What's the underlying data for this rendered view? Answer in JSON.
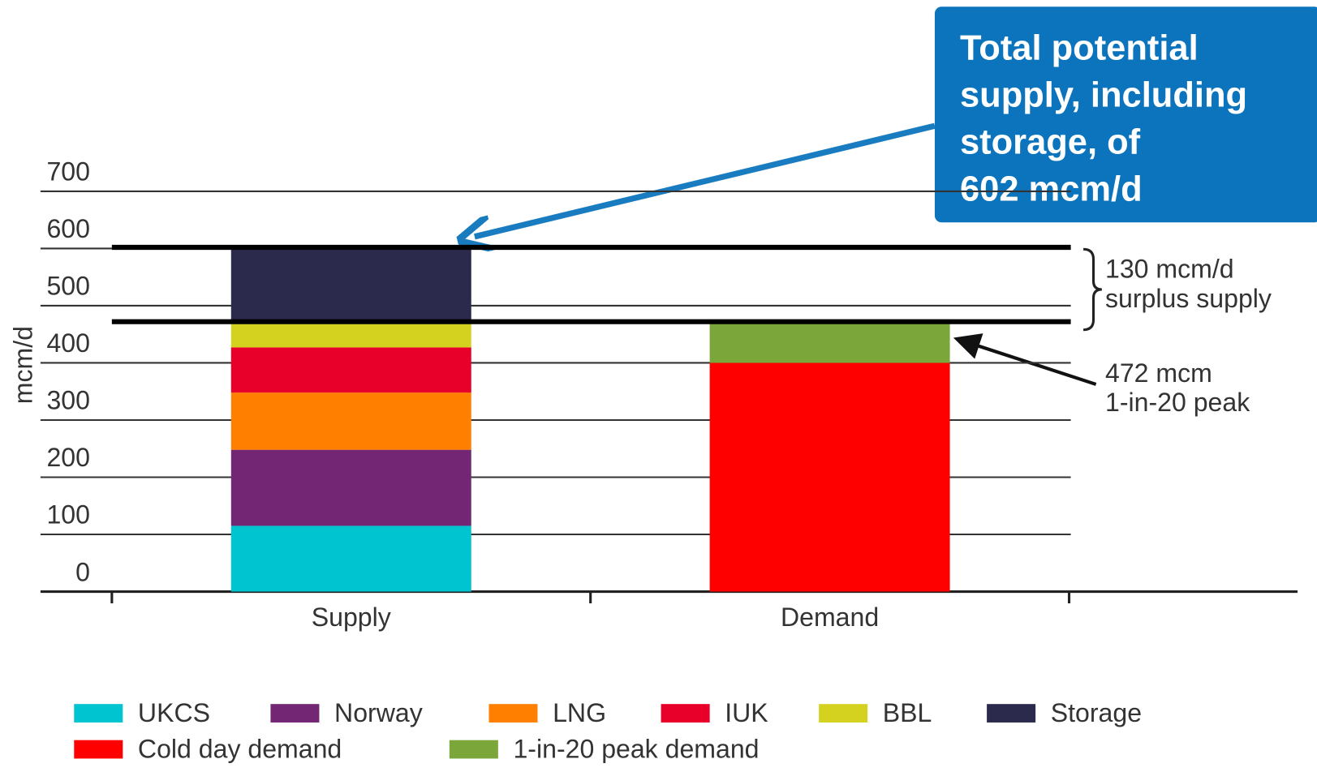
{
  "chart_data": {
    "type": "bar",
    "stacked": true,
    "y_label": "mcm/d",
    "categories": [
      "Supply",
      "Demand"
    ],
    "series": [
      {
        "name": "UKCS",
        "color": "#00c4d0",
        "values": [
          115,
          null
        ]
      },
      {
        "name": "Norway",
        "color": "#732673",
        "values": [
          133,
          null
        ]
      },
      {
        "name": "LNG",
        "color": "#ff8000",
        "values": [
          100,
          null
        ]
      },
      {
        "name": "IUK",
        "color": "#e8002a",
        "values": [
          79,
          null
        ]
      },
      {
        "name": "BBL",
        "color": "#d4d21e",
        "values": [
          43,
          null
        ]
      },
      {
        "name": "Storage",
        "color": "#2b2a4d",
        "values": [
          132,
          null
        ]
      },
      {
        "name": "Cold day demand",
        "color": "#ff0000",
        "values": [
          null,
          400
        ]
      },
      {
        "name": "1-in-20 peak demand",
        "color": "#7ba63a",
        "values": [
          null,
          72
        ]
      }
    ],
    "ylim": [
      0,
      700
    ],
    "yticks": [
      0,
      100,
      200,
      300,
      400,
      500,
      600,
      700
    ],
    "grid": true,
    "reference_lines": [
      602,
      472
    ],
    "callout": [
      "Total potential",
      "supply, including",
      "storage, of",
      "602 mcm/d"
    ],
    "annotations": [
      [
        "130 mcm/d",
        "surplus supply"
      ],
      [
        "472 mcm",
        "1-in-20 peak"
      ]
    ],
    "legend": "bottom"
  }
}
